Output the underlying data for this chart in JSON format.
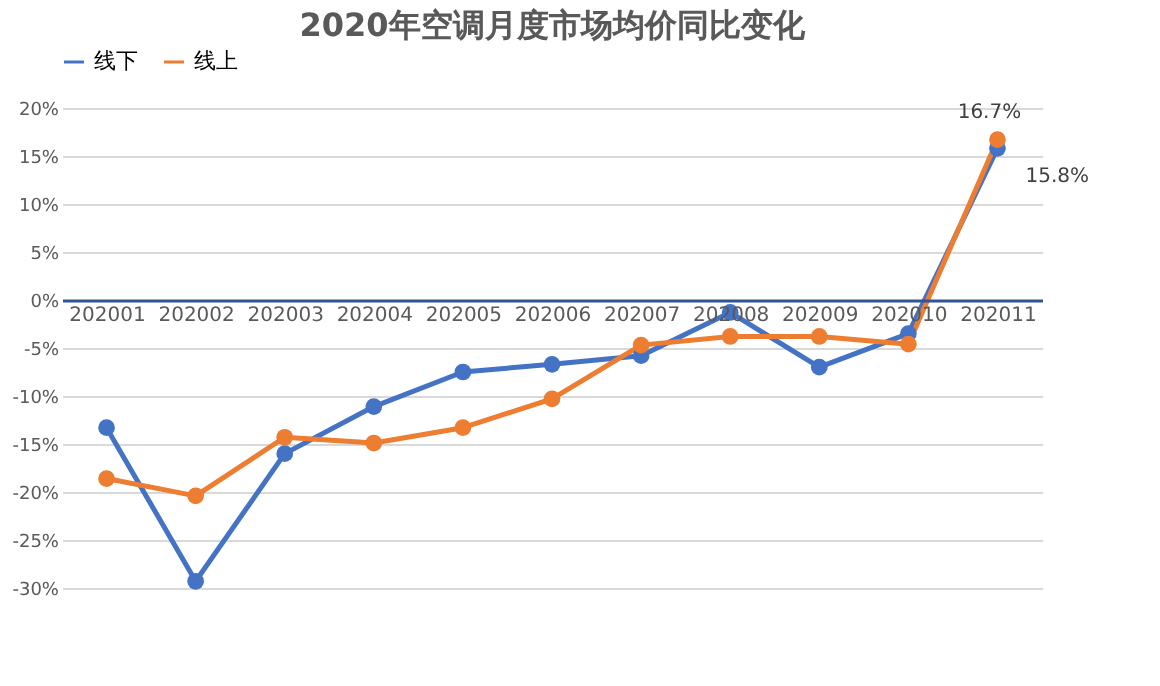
{
  "chart_data": {
    "type": "line",
    "title": "2020年空调月度市场均价同比变化",
    "categories": [
      "202001",
      "202002",
      "202003",
      "202004",
      "202005",
      "202006",
      "202007",
      "202008",
      "202009",
      "202010",
      "202011"
    ],
    "series": [
      {
        "name": "线下",
        "color": "#4472c4",
        "values": [
          -13.3,
          -29.3,
          -16.0,
          -11.1,
          -7.5,
          -6.7,
          -5.8,
          -1.3,
          -7.0,
          -3.5,
          15.8
        ],
        "value_labels": [
          null,
          null,
          null,
          null,
          null,
          null,
          null,
          null,
          null,
          null,
          "15.8%"
        ]
      },
      {
        "name": "线上",
        "color": "#ed7d31",
        "values": [
          -18.6,
          -20.4,
          -14.3,
          -14.9,
          -13.3,
          -10.3,
          -4.7,
          -3.8,
          -3.8,
          -4.6,
          16.7
        ],
        "value_labels": [
          null,
          null,
          null,
          null,
          null,
          null,
          null,
          null,
          null,
          null,
          "16.7%"
        ]
      }
    ],
    "ylim": [
      -30,
      20
    ],
    "yticks": [
      {
        "value": -30,
        "label": "-30%"
      },
      {
        "value": -25,
        "label": "-25%"
      },
      {
        "value": -20,
        "label": "-20%"
      },
      {
        "value": -15,
        "label": "-15%"
      },
      {
        "value": -10,
        "label": "-10%"
      },
      {
        "value": -5,
        "label": "-5%"
      },
      {
        "value": 0,
        "label": "0%"
      },
      {
        "value": 5,
        "label": "5%"
      },
      {
        "value": 10,
        "label": "10%"
      },
      {
        "value": 15,
        "label": "15%"
      },
      {
        "value": 20,
        "label": "20%"
      }
    ],
    "grid": "y",
    "legend": "top",
    "marker": "circle",
    "line_style": "solid"
  }
}
